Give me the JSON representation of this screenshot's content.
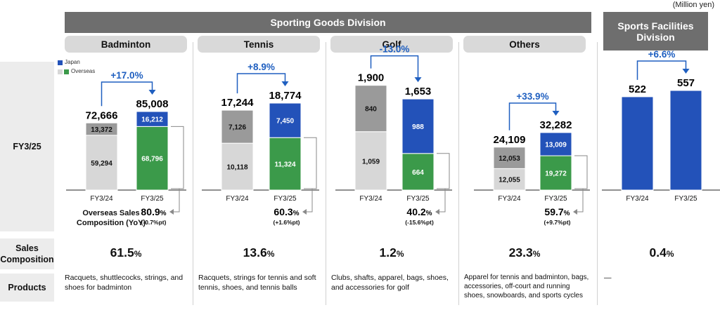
{
  "unit_note": "(Million yen)",
  "divisions": {
    "sporting_goods": "Sporting Goods Division",
    "sports_facilities": "Sports Facilities Division"
  },
  "row_labels": {
    "fy": "FY3/25",
    "sales_composition": "Sales Composition",
    "products": "Products"
  },
  "legend": {
    "japan": "Japan",
    "overseas": "Overseas"
  },
  "overseas_label": "Overseas Sales Composition (YoY)",
  "colors": {
    "prev_japan": "#9a9a9a",
    "prev_overseas": "#d7d7d7",
    "japan": "#2352b9",
    "overseas": "#3b9a4a",
    "change": "#1f5fc0"
  },
  "chart_data": [
    {
      "type": "bar",
      "segment": "Badminton",
      "categories": [
        "FY3/24",
        "FY3/25"
      ],
      "series": [
        {
          "name": "Overseas",
          "values": [
            59294,
            68796
          ]
        },
        {
          "name": "Japan",
          "values": [
            13372,
            16212
          ]
        }
      ],
      "totals": [
        "72,666",
        "85,008"
      ],
      "change": "+17.0%",
      "overseas_share": {
        "value": "80.9",
        "yoy": "(-0.7%pt)"
      },
      "sales_composition": "61.5",
      "products": "Racquets, shuttlecocks, strings, and shoes for badminton"
    },
    {
      "type": "bar",
      "segment": "Tennis",
      "categories": [
        "FY3/24",
        "FY3/25"
      ],
      "series": [
        {
          "name": "Overseas",
          "values": [
            10118,
            11324
          ]
        },
        {
          "name": "Japan",
          "values": [
            7126,
            7450
          ]
        }
      ],
      "totals": [
        "17,244",
        "18,774"
      ],
      "change": "+8.9%",
      "overseas_share": {
        "value": "60.3",
        "yoy": "(+1.6%pt)"
      },
      "sales_composition": "13.6",
      "products": "Racquets, strings for tennis and soft tennis, shoes, and tennis balls"
    },
    {
      "type": "bar",
      "segment": "Golf",
      "categories": [
        "FY3/24",
        "FY3/25"
      ],
      "series": [
        {
          "name": "Overseas",
          "values": [
            1059,
            664
          ]
        },
        {
          "name": "Japan",
          "values": [
            840,
            988
          ]
        }
      ],
      "totals": [
        "1,900",
        "1,653"
      ],
      "change": "-13.0%",
      "overseas_share": {
        "value": "40.2",
        "yoy": "(-15.6%pt)"
      },
      "sales_composition": "1.2",
      "products": "Clubs, shafts, apparel, bags, shoes, and accessories for golf"
    },
    {
      "type": "bar",
      "segment": "Others",
      "categories": [
        "FY3/24",
        "FY3/25"
      ],
      "series": [
        {
          "name": "Overseas",
          "values": [
            12055,
            19272
          ]
        },
        {
          "name": "Japan",
          "values": [
            12053,
            13009
          ]
        }
      ],
      "totals": [
        "24,109",
        "32,282"
      ],
      "change": "+33.9%",
      "overseas_share": {
        "value": "59.7",
        "yoy": "(+9.7%pt)"
      },
      "sales_composition": "23.3",
      "products": "Apparel for tennis and badminton, bags, accessories, off-court and running shoes, snowboards, and sports cycles"
    },
    {
      "type": "bar",
      "segment": "Sports Facilities",
      "categories": [
        "FY3/24",
        "FY3/25"
      ],
      "series": [
        {
          "name": "Japan",
          "values": [
            522,
            557
          ]
        }
      ],
      "totals": [
        "522",
        "557"
      ],
      "change": "+6.6%",
      "sales_composition": "0.4",
      "products": "—"
    }
  ]
}
